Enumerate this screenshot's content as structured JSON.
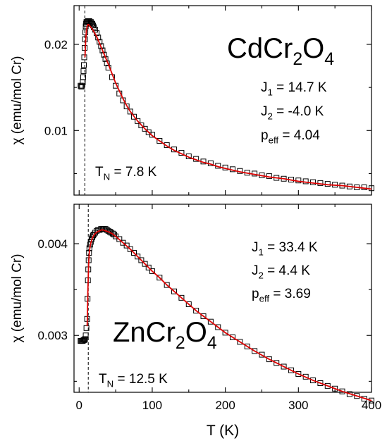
{
  "chart_data": [
    {
      "type": "scatter",
      "title": "CdCr2O4",
      "compound": {
        "base1": "CdCr",
        "sub1": "2",
        "base2": "O",
        "sub2": "4"
      },
      "ylabel": "χ (emu/mol Cr)",
      "xlim": [
        -7,
        400
      ],
      "ylim": [
        0.0025,
        0.0245
      ],
      "yticks": [
        0.01,
        0.02
      ],
      "ytick_labels": [
        "0.01",
        "0.02"
      ],
      "x_minor_step": 50,
      "y_minor_step": 0.005,
      "transition_temperature": 7.8,
      "params": [
        {
          "sym": "J",
          "sub": "1",
          "val": " = 14.7 K"
        },
        {
          "sym": "J",
          "sub": "2",
          "val": " = -4.0 K"
        },
        {
          "sym": "p",
          "sub": "eff",
          "val": " = 4.04"
        }
      ],
      "tn_label": {
        "sym": "T",
        "sub": "N",
        "val": " = 7.8 K"
      },
      "series": [
        {
          "marker": "open-square",
          "color": "#000000",
          "x": [
            2,
            3,
            4,
            5,
            5.5,
            6,
            6.5,
            7,
            7.5,
            8,
            8.5,
            9,
            9.5,
            10,
            11,
            12,
            13,
            14,
            15,
            16,
            17,
            18,
            19,
            20,
            22,
            24,
            26,
            28,
            30,
            32,
            34,
            36,
            38,
            40,
            45,
            50,
            55,
            60,
            65,
            70,
            75,
            80,
            85,
            90,
            95,
            100,
            110,
            120,
            130,
            140,
            150,
            160,
            170,
            180,
            190,
            200,
            210,
            220,
            230,
            240,
            250,
            260,
            270,
            280,
            290,
            300,
            310,
            320,
            330,
            340,
            350,
            360,
            370,
            380,
            390,
            400
          ],
          "y": [
            0.0152,
            0.0151,
            0.0152,
            0.0156,
            0.0162,
            0.0169,
            0.0176,
            0.0185,
            0.0196,
            0.0206,
            0.0214,
            0.0221,
            0.0224,
            0.0226,
            0.0226,
            0.0227,
            0.0226,
            0.0227,
            0.0225,
            0.0226,
            0.0224,
            0.0224,
            0.0222,
            0.022,
            0.0217,
            0.0213,
            0.0208,
            0.0203,
            0.0198,
            0.0193,
            0.0188,
            0.0183,
            0.0178,
            0.0173,
            0.0162,
            0.0152,
            0.0143,
            0.0135,
            0.0128,
            0.0122,
            0.0116,
            0.0111,
            0.0106,
            0.0102,
            0.0098,
            0.0095,
            0.0088,
            0.0083,
            0.0078,
            0.0074,
            0.007,
            0.0067,
            0.0064,
            0.0062,
            0.0059,
            0.0057,
            0.0055,
            0.0053,
            0.0051,
            0.005,
            0.0048,
            0.0047,
            0.0045,
            0.0044,
            0.0043,
            0.0042,
            0.0041,
            0.004,
            0.0039,
            0.0038,
            0.0037,
            0.0036,
            0.0035,
            0.0034,
            0.0034,
            0.0033
          ]
        },
        {
          "marker": "line",
          "color": "#dd0000",
          "x": [
            8,
            9,
            10,
            11,
            12,
            13,
            14,
            15,
            16,
            18,
            20,
            22,
            24,
            26,
            28,
            30,
            33,
            36,
            40,
            45,
            50,
            55,
            60,
            65,
            70,
            80,
            90,
            100,
            110,
            120,
            130,
            140,
            150,
            160,
            170,
            180,
            190,
            200,
            220,
            240,
            260,
            280,
            300,
            320,
            340,
            360,
            380,
            400
          ],
          "y": [
            0.0185,
            0.0205,
            0.0216,
            0.0221,
            0.0223,
            0.0223,
            0.0222,
            0.0221,
            0.022,
            0.0218,
            0.0215,
            0.0212,
            0.0209,
            0.0205,
            0.0201,
            0.0197,
            0.0191,
            0.0185,
            0.0177,
            0.0166,
            0.0155,
            0.0146,
            0.0137,
            0.0129,
            0.0122,
            0.0111,
            0.0102,
            0.0094,
            0.0088,
            0.0082,
            0.0077,
            0.0073,
            0.0069,
            0.0066,
            0.0063,
            0.0061,
            0.0058,
            0.0056,
            0.0052,
            0.0049,
            0.0046,
            0.0044,
            0.0041,
            0.0039,
            0.0037,
            0.0036,
            0.0034,
            0.0032
          ]
        }
      ]
    },
    {
      "type": "scatter",
      "title": "ZnCr2O4",
      "compound": {
        "base1": "ZnCr",
        "sub1": "2",
        "base2": "O",
        "sub2": "4"
      },
      "xlabel": "T (K)",
      "ylabel": "χ (emu/mol Cr)",
      "xlim": [
        -7,
        400
      ],
      "xticks": [
        0,
        100,
        200,
        300,
        400
      ],
      "xtick_labels": [
        "0",
        "100",
        "200",
        "300",
        "400"
      ],
      "x_minor_step": 50,
      "ylim": [
        0.00238,
        0.00443
      ],
      "yticks": [
        0.003,
        0.004
      ],
      "ytick_labels": [
        "0.003",
        "0.004"
      ],
      "y_minor_step": 0.0005,
      "transition_temperature": 12.5,
      "params": [
        {
          "sym": "J",
          "sub": "1",
          "val": " = 33.4 K"
        },
        {
          "sym": "J",
          "sub": "2",
          "val": " = 4.4 K"
        },
        {
          "sym": "p",
          "sub": "eff",
          "val": " = 3.69"
        }
      ],
      "tn_label": {
        "sym": "T",
        "sub": "N",
        "val": " = 12.5 K"
      },
      "series": [
        {
          "marker": "open-square",
          "color": "#000000",
          "x": [
            2,
            3,
            4,
            5,
            6,
            7,
            8,
            9,
            10,
            11,
            11.5,
            12,
            12.5,
            13,
            13.5,
            14,
            15,
            16,
            17,
            18,
            19,
            20,
            22,
            24,
            26,
            28,
            30,
            32,
            34,
            36,
            38,
            40,
            42,
            44,
            46,
            48,
            50,
            55,
            60,
            65,
            70,
            75,
            80,
            85,
            90,
            95,
            100,
            110,
            120,
            130,
            140,
            150,
            160,
            170,
            180,
            190,
            200,
            210,
            220,
            230,
            240,
            250,
            260,
            270,
            280,
            290,
            300,
            310,
            320,
            330,
            340,
            350,
            360,
            370,
            380,
            390,
            400
          ],
          "y": [
            0.00294,
            0.00294,
            0.00294,
            0.00294,
            0.00295,
            0.00295,
            0.00296,
            0.003,
            0.00308,
            0.00318,
            0.0034,
            0.0036,
            0.00372,
            0.00382,
            0.0039,
            0.00395,
            0.00399,
            0.00402,
            0.00405,
            0.00407,
            0.00409,
            0.0041,
            0.00412,
            0.00414,
            0.00415,
            0.00415,
            0.00416,
            0.00416,
            0.00416,
            0.00416,
            0.00415,
            0.00414,
            0.00413,
            0.00412,
            0.00411,
            0.0041,
            0.00408,
            0.00405,
            0.00401,
            0.00398,
            0.00394,
            0.0039,
            0.00386,
            0.00382,
            0.00378,
            0.00374,
            0.0037,
            0.00363,
            0.00355,
            0.00348,
            0.00341,
            0.00334,
            0.00327,
            0.00321,
            0.00315,
            0.00309,
            0.00303,
            0.00298,
            0.00293,
            0.00288,
            0.00283,
            0.00279,
            0.00274,
            0.0027,
            0.00266,
            0.00262,
            0.00258,
            0.00255,
            0.00251,
            0.00248,
            0.00245,
            0.00242,
            0.00239,
            0.00236,
            0.00234,
            0.00231,
            0.00229
          ]
        },
        {
          "marker": "line",
          "color": "#dd0000",
          "x": [
            11,
            12,
            13,
            14,
            15,
            16,
            18,
            20,
            22,
            25,
            28,
            30,
            33,
            36,
            40,
            45,
            50,
            60,
            70,
            80,
            90,
            100,
            110,
            120,
            130,
            140,
            150,
            160,
            170,
            180,
            190,
            200,
            220,
            240,
            260,
            280,
            300,
            320,
            340,
            360,
            380,
            400
          ],
          "y": [
            0.0031,
            0.0035,
            0.00378,
            0.00391,
            0.00397,
            0.00401,
            0.00406,
            0.00409,
            0.00411,
            0.00413,
            0.00414,
            0.00415,
            0.00415,
            0.00414,
            0.00413,
            0.00411,
            0.00408,
            0.00401,
            0.00394,
            0.00386,
            0.00378,
            0.0037,
            0.00363,
            0.00355,
            0.00348,
            0.00341,
            0.00334,
            0.00327,
            0.00321,
            0.00315,
            0.00309,
            0.00303,
            0.00293,
            0.00283,
            0.00274,
            0.00266,
            0.00258,
            0.00251,
            0.00245,
            0.00239,
            0.00234,
            0.00229
          ]
        }
      ]
    }
  ]
}
